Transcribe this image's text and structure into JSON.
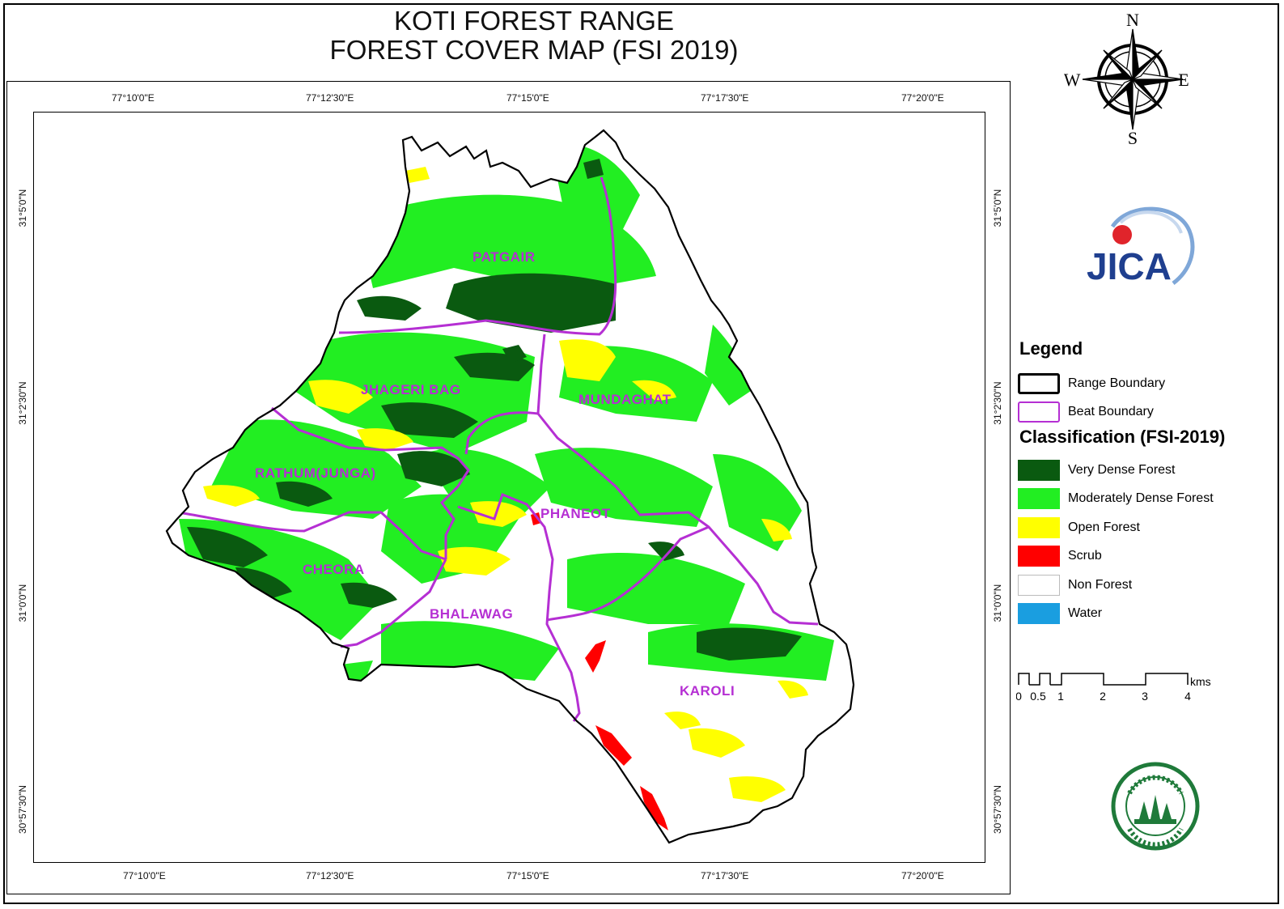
{
  "title": {
    "line1": "KOTI FOREST RANGE",
    "line2": "FOREST COVER MAP (FSI 2019)"
  },
  "coords": {
    "top": [
      "77°10'0\"E",
      "77°12'30\"E",
      "77°15'0\"E",
      "77°17'30\"E",
      "77°20'0\"E"
    ],
    "bottom": [
      "77°10'0\"E",
      "77°12'30\"E",
      "77°15'0\"E",
      "77°17'30\"E",
      "77°20'0\"E"
    ],
    "left": [
      "31°5'0\"N",
      "31°2'30\"N",
      "31°0'0\"N",
      "30°57'30\"N"
    ],
    "right": [
      "31°5'0\"N",
      "31°2'30\"N",
      "31°0'0\"N",
      "30°57'30\"N"
    ]
  },
  "beats": [
    "PATGAIR",
    "JHAGERI BAG",
    "MUNDAGHAT",
    "RATHUM(JUNGA)",
    "PHANEOT",
    "CHEORA",
    "BHALAWAG",
    "KAROLI"
  ],
  "compass": {
    "n": "N",
    "s": "S",
    "e": "E",
    "w": "W"
  },
  "logo": {
    "text": "JICA"
  },
  "legend": {
    "title": "Legend",
    "boundaries": [
      {
        "label": "Range Boundary",
        "color": "#000000"
      },
      {
        "label": "Beat Boundary",
        "color": "#b52fd3"
      }
    ],
    "classification_title": "Classification (FSI-2019)",
    "classes": [
      {
        "label": "Very Dense Forest",
        "color": "#0a5a10"
      },
      {
        "label": "Moderately Dense Forest",
        "color": "#22ee22"
      },
      {
        "label": "Open Forest",
        "color": "#ffff00"
      },
      {
        "label": "Scrub",
        "color": "#ff0000"
      },
      {
        "label": "Non Forest",
        "color": "#ffffff"
      },
      {
        "label": "Water",
        "color": "#1a9ee0"
      }
    ]
  },
  "scale": {
    "ticks": [
      "0",
      "0.5",
      "1",
      "2",
      "3",
      "4"
    ],
    "unit": "kms"
  },
  "seal": {
    "text": "वन विभाग हिमाचल प्रदेश"
  }
}
